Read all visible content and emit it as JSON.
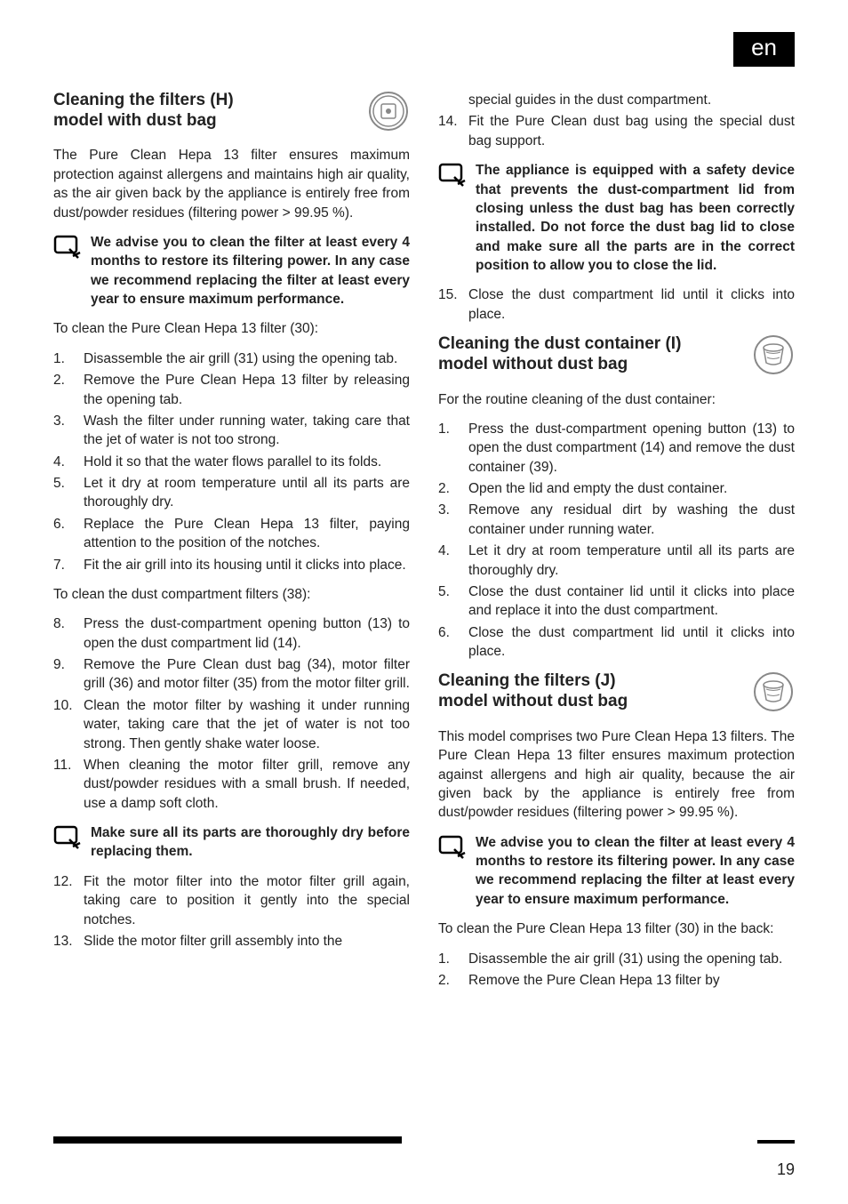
{
  "lang_badge": "en",
  "colors": {
    "text": "#000000",
    "bg": "#ffffff",
    "badge_bg": "#000000",
    "badge_fg": "#ffffff"
  },
  "page_number": "19",
  "left": {
    "sec_h": {
      "title_l1": "Cleaning the filters (H)",
      "title_l2": "model with dust bag",
      "intro": "The Pure Clean Hepa 13 filter ensures maximum protection against allergens and maintains high air quality, as the air given back by the appliance is entirely free from dust/powder residues (filtering power > 99.95 %).",
      "note": "We advise you to clean the filter at least every 4 months to restore its filtering power. In any case we recommend replacing the filter at least every year to ensure maximum performance.",
      "pre_list1": "To clean the Pure Clean Hepa 13 filter (30):",
      "list1": [
        "Disassemble the air grill (31) using the opening tab.",
        "Remove the Pure Clean Hepa 13 filter by releasing the opening tab.",
        "Wash the filter under running water, taking care that the jet of water is not too strong.",
        "Hold it so that the water flows parallel to its folds.",
        "Let it dry at room temperature until all its parts are thoroughly dry.",
        "Replace the Pure Clean Hepa 13 filter, paying attention to the position of the notches.",
        "Fit the air grill into its housing until it clicks into place."
      ],
      "pre_list2": "To clean the dust compartment filters (38):",
      "list2": [
        "Press the dust-compartment opening button (13) to open the dust compartment lid (14).",
        "Remove the Pure Clean dust bag (34), motor filter grill (36) and motor filter (35) from the motor filter grill.",
        "Clean the motor filter by washing it under running water, taking care that the jet of water is not too strong. Then gently shake water loose.",
        "When cleaning the motor filter grill, remove any dust/powder residues with a small brush. If needed, use a damp soft cloth."
      ],
      "note2": "Make sure all its parts are thoroughly dry before replacing them.",
      "list3": [
        "Fit the motor filter into the motor filter grill again, taking care to position it gently into the special notches.",
        "Slide the motor filter grill assembly into the"
      ]
    }
  },
  "right": {
    "cont_list": [
      "special guides in the dust compartment.",
      "Fit the Pure Clean dust bag using the special dust bag support."
    ],
    "note3": "The appliance is equipped with a safety device that prevents the dust-compartment lid from closing unless the dust bag has been correctly installed. Do not force the dust bag lid to close and make sure all the parts are in the correct position to allow you to close the lid.",
    "list4": [
      "Close the dust compartment lid until it clicks into place."
    ],
    "sec_i": {
      "title_l1": "Cleaning the dust container (I)",
      "title_l2": "model without dust bag",
      "intro": "For the routine cleaning of the dust container:",
      "list": [
        "Press the dust-compartment opening button (13) to open the dust compartment (14) and remove the dust container (39).",
        "Open the lid and empty the dust container.",
        "Remove any residual dirt by washing the dust container under running water.",
        "Let it dry at room temperature until all its parts are thoroughly dry.",
        "Close the dust container lid until it clicks into place and replace it into the dust compartment.",
        "Close the dust compartment lid until it clicks into place."
      ]
    },
    "sec_j": {
      "title_l1": "Cleaning the filters (J)",
      "title_l2": "model without dust bag",
      "intro": "This model comprises two Pure Clean Hepa 13 filters. The Pure Clean Hepa 13 filter ensures maximum protection against allergens and high air quality, because the air given back by the appliance is entirely free from dust/powder residues (filtering power > 99.95 %).",
      "note": "We advise you to clean the filter at least every 4 months to restore its filtering power. In any case we recommend replacing the filter at least every year to ensure maximum performance.",
      "pre_list": "To clean the Pure Clean Hepa 13 filter (30) in the back:",
      "list": [
        "Disassemble the air grill (31) using the opening tab.",
        "Remove the Pure Clean Hepa 13 filter by"
      ]
    }
  }
}
